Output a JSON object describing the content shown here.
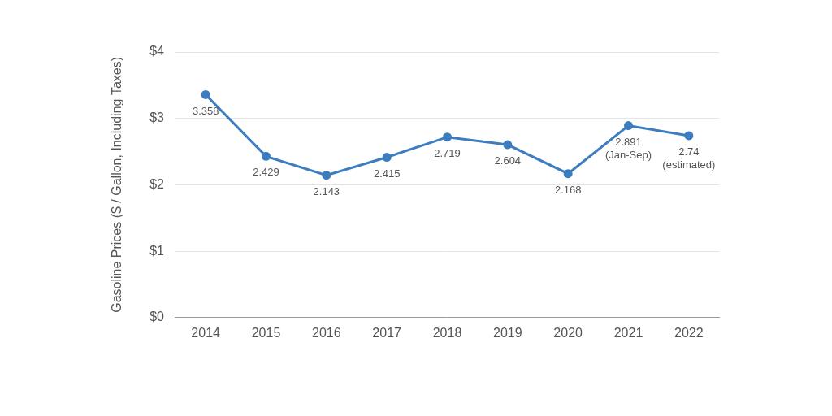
{
  "chart_data": {
    "type": "line",
    "ylabel": "Gasoline Prices ($ / Gallon, Including Taxes)",
    "categories": [
      "2014",
      "2015",
      "2016",
      "2017",
      "2018",
      "2019",
      "2020",
      "2021",
      "2022"
    ],
    "values": [
      3.358,
      2.429,
      2.143,
      2.415,
      2.719,
      2.604,
      2.168,
      2.891,
      2.74
    ],
    "value_labels": [
      "3.358",
      "2.429",
      "2.143",
      "2.415",
      "2.719",
      "2.604",
      "2.168",
      "2.891\n(Jan-Sep)",
      "2.74\n(estimated)"
    ],
    "data_labels": true,
    "color": "#3b7dbf",
    "marker": "circle",
    "ylim": [
      0,
      4
    ],
    "yticks": [
      {
        "value": 0,
        "label": "$0"
      },
      {
        "value": 1,
        "label": "$1"
      },
      {
        "value": 2,
        "label": "$2"
      },
      {
        "value": 3,
        "label": "$3"
      },
      {
        "value": 4,
        "label": "$4"
      }
    ],
    "grid": true
  }
}
